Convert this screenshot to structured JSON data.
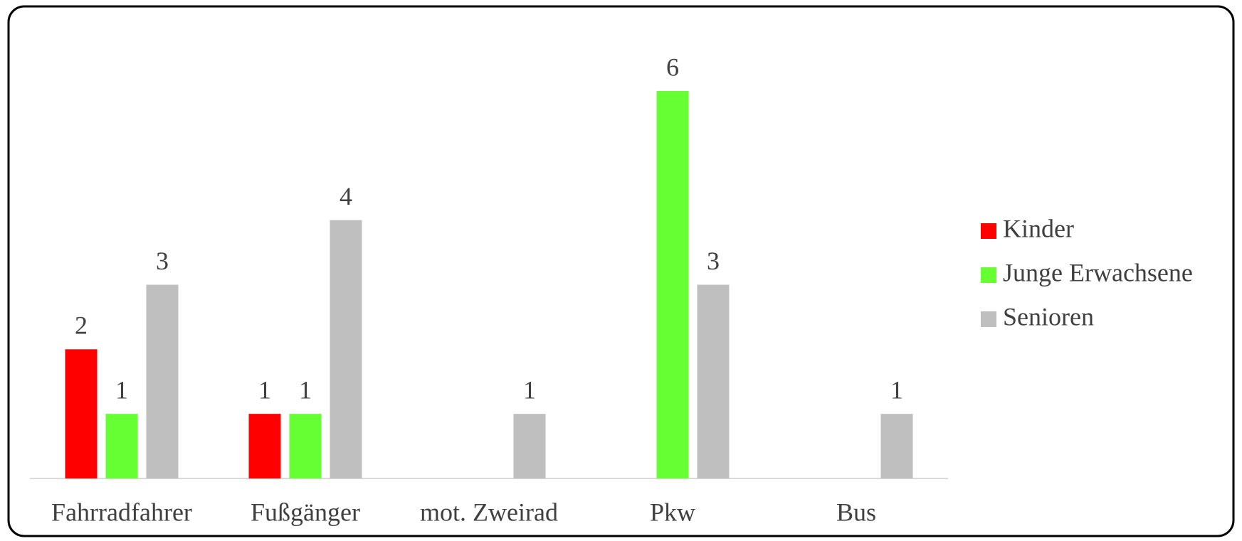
{
  "chart_data": {
    "type": "bar",
    "categories": [
      "Fahrradfahrer",
      "Fußgänger",
      "mot. Zweirad",
      "Pkw",
      "Bus"
    ],
    "series": [
      {
        "name": "Kinder",
        "color": "#ff0000",
        "values": [
          2,
          1,
          null,
          null,
          null
        ]
      },
      {
        "name": "Junge Erwachsene",
        "color": "#66ff33",
        "values": [
          1,
          1,
          null,
          6,
          null
        ]
      },
      {
        "name": "Senioren",
        "color": "#bfbfbf",
        "values": [
          3,
          4,
          1,
          3,
          1
        ]
      }
    ],
    "ylim": [
      0,
      6
    ],
    "legend": "right"
  }
}
